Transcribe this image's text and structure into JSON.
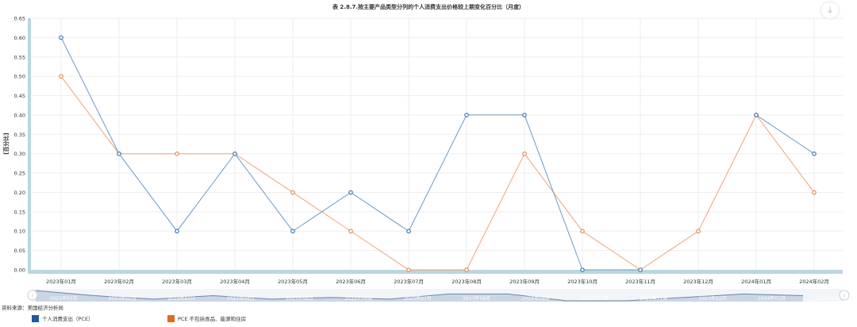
{
  "chart_data": {
    "type": "line",
    "title": "表 2.8.7.按主要产品类型分列的个人消费支出价格较上期变化百分比（月度）",
    "ylabel": "[百分比]",
    "ylim": [
      0,
      0.65
    ],
    "yticks": [
      "0.00",
      "0.05",
      "0.10",
      "0.15",
      "0.20",
      "0.25",
      "0.30",
      "0.35",
      "0.40",
      "0.45",
      "0.50",
      "0.55",
      "0.60",
      "0.65"
    ],
    "categories": [
      "2023年01月",
      "2023年02月",
      "2023年03月",
      "2023年04月",
      "2023年05月",
      "2023年06月",
      "2023年07月",
      "2023年08月",
      "2023年09月",
      "2023年10月",
      "2023年11月",
      "2023年12月",
      "2024年01月",
      "2024年02月"
    ],
    "navigator_labels": [
      "2023年01月",
      "2023年02月",
      "2023年03月",
      "2023年04月",
      "2023年05月",
      "2023年06月",
      "2023年07月",
      "2023年08月",
      "2023年09月",
      "2023年10月",
      "2023年11月",
      "2023年12月",
      "2024年01月",
      "2024年02月"
    ],
    "grid": true,
    "legend_position": "bottom",
    "series": [
      {
        "name": "个人消费支出（PCE）",
        "color": "#6a9ac8",
        "swatch_color": "#1f5a9c",
        "values": [
          0.6,
          0.3,
          0.1,
          0.3,
          0.1,
          0.2,
          0.1,
          0.4,
          0.4,
          0.0,
          0.0,
          null,
          0.4,
          0.3
        ]
      },
      {
        "name": "PCE 不包括食品、能源和住房",
        "color": "#f0a275",
        "swatch_color": "#e06b1f",
        "values": [
          0.5,
          0.3,
          0.3,
          0.3,
          0.2,
          0.1,
          0.0,
          0.0,
          0.3,
          0.1,
          0.0,
          0.1,
          0.4,
          0.2
        ]
      }
    ]
  },
  "source_text": "资料来源：美国经济分析局",
  "export_icon": "download-icon",
  "colors": {
    "axis_band": "#b9d7e0",
    "grid": "#eeeeee",
    "text": "#333333",
    "navigator_fill": "#dfe6ee",
    "navigator_line": "#6b86a8"
  }
}
